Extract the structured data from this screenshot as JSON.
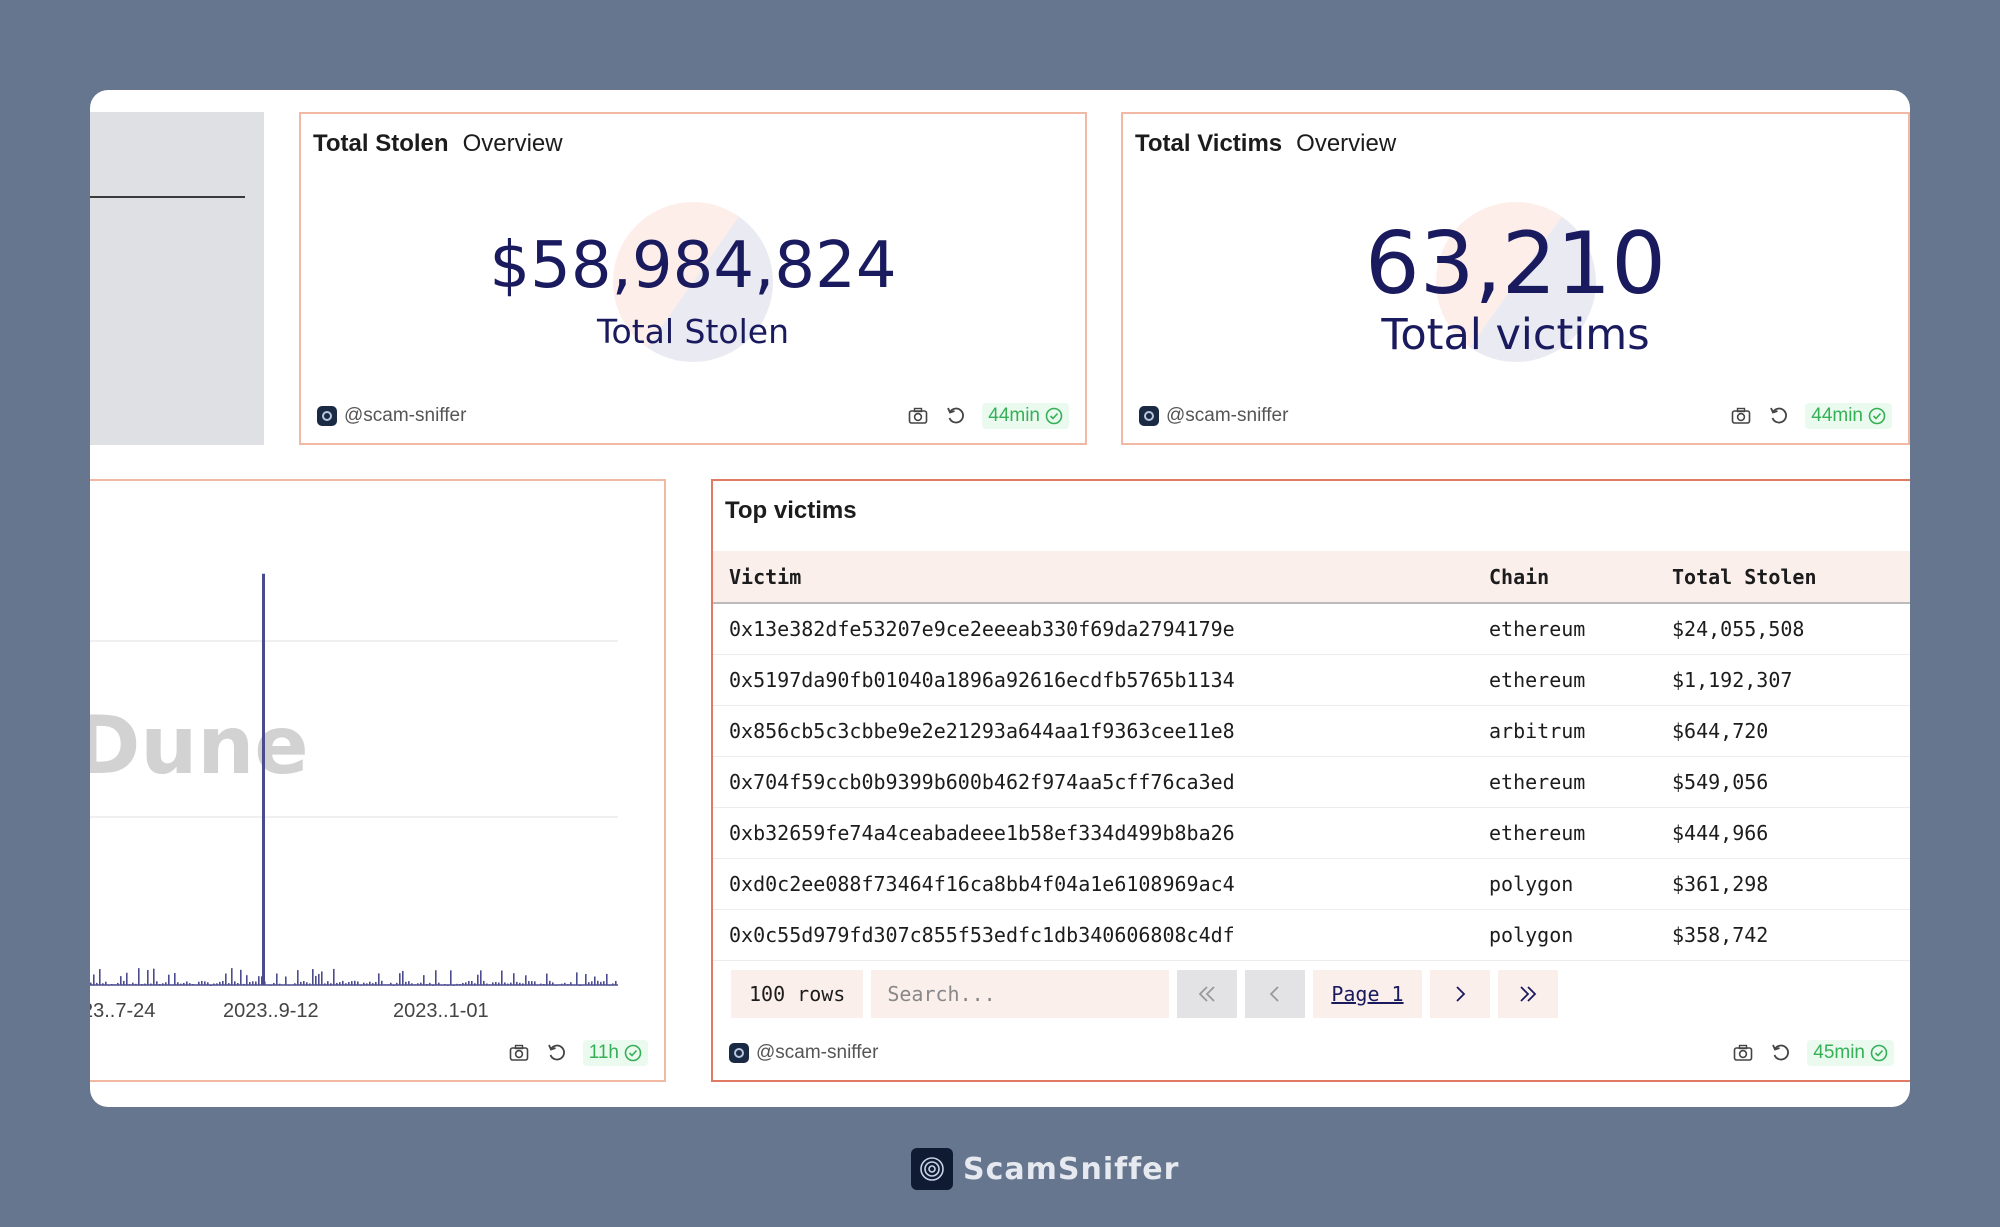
{
  "stolen_card": {
    "title": "Total Stolen",
    "subtitle": "Overview",
    "value": "$58,984,824",
    "label": "Total Stolen",
    "owner": "@scam-sniffer",
    "age": "44min"
  },
  "victims_card": {
    "title": "Total Victims",
    "subtitle": "Overview",
    "value": "63,210",
    "label": "Total victims",
    "owner": "@scam-sniffer",
    "age": "44min"
  },
  "chart_card": {
    "watermark": "Dune",
    "age": "11h"
  },
  "chart_data": {
    "type": "bar",
    "title": "",
    "xlabel": "",
    "ylabel": "",
    "x_tick_labels": [
      "23..7-24",
      "2023..9-12",
      "2023..1-01"
    ],
    "grid": true,
    "legend": "none",
    "series_color": "#4b4b8f",
    "spike_fraction_of_axis": 0.97,
    "notes_visible": false
  },
  "top_victims": {
    "title": "Top victims",
    "columns": [
      "Victim",
      "Chain",
      "Total Stolen"
    ],
    "rows": [
      [
        "0x13e382dfe53207e9ce2eeeab330f69da2794179e",
        "ethereum",
        "$24,055,508"
      ],
      [
        "0x5197da90fb01040a1896a92616ecdfb5765b1134",
        "ethereum",
        "$1,192,307"
      ],
      [
        "0x856cb5c3cbbe9e2e21293a644aa1f9363cee11e8",
        "arbitrum",
        "$644,720"
      ],
      [
        "0x704f59ccb0b9399b600b462f974aa5cff76ca3ed",
        "ethereum",
        "$549,056"
      ],
      [
        "0xb32659fe74a4ceabadeee1b58ef334d499b8ba26",
        "ethereum",
        "$444,966"
      ],
      [
        "0xd0c2ee088f73464f16ca8bb4f04a1e6108969ac4",
        "polygon",
        "$361,298"
      ],
      [
        "0x0c55d979fd307c855f53edfc1db340606808c4df",
        "polygon",
        "$358,742"
      ]
    ],
    "rows_label": "100 rows",
    "search_placeholder": "Search...",
    "page_label": "Page 1",
    "owner": "@scam-sniffer",
    "age": "45min"
  },
  "brand": {
    "name": "ScamSniffer"
  },
  "colors": {
    "background": "#66768e",
    "accent_navy": "#1a1a5e",
    "card_border": "#f1b8a4",
    "fresh_green": "#36b057"
  }
}
